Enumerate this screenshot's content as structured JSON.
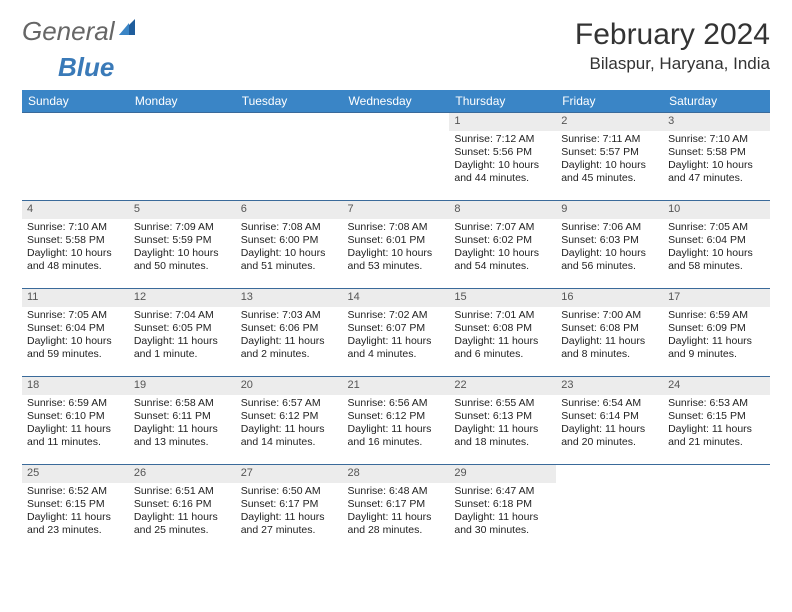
{
  "logo": {
    "text1": "General",
    "text2": "Blue"
  },
  "title": "February 2024",
  "location": "Bilaspur, Haryana, India",
  "colors": {
    "header_bg": "#3a85c6",
    "header_text": "#ffffff",
    "daynum_bg": "#ececec",
    "row_border": "#3a6a9a",
    "logo_accent": "#3a7ab8"
  },
  "weekdays": [
    "Sunday",
    "Monday",
    "Tuesday",
    "Wednesday",
    "Thursday",
    "Friday",
    "Saturday"
  ],
  "weeks": [
    [
      null,
      null,
      null,
      null,
      {
        "n": "1",
        "sr": "Sunrise: 7:12 AM",
        "ss": "Sunset: 5:56 PM",
        "d1": "Daylight: 10 hours",
        "d2": "and 44 minutes."
      },
      {
        "n": "2",
        "sr": "Sunrise: 7:11 AM",
        "ss": "Sunset: 5:57 PM",
        "d1": "Daylight: 10 hours",
        "d2": "and 45 minutes."
      },
      {
        "n": "3",
        "sr": "Sunrise: 7:10 AM",
        "ss": "Sunset: 5:58 PM",
        "d1": "Daylight: 10 hours",
        "d2": "and 47 minutes."
      }
    ],
    [
      {
        "n": "4",
        "sr": "Sunrise: 7:10 AM",
        "ss": "Sunset: 5:58 PM",
        "d1": "Daylight: 10 hours",
        "d2": "and 48 minutes."
      },
      {
        "n": "5",
        "sr": "Sunrise: 7:09 AM",
        "ss": "Sunset: 5:59 PM",
        "d1": "Daylight: 10 hours",
        "d2": "and 50 minutes."
      },
      {
        "n": "6",
        "sr": "Sunrise: 7:08 AM",
        "ss": "Sunset: 6:00 PM",
        "d1": "Daylight: 10 hours",
        "d2": "and 51 minutes."
      },
      {
        "n": "7",
        "sr": "Sunrise: 7:08 AM",
        "ss": "Sunset: 6:01 PM",
        "d1": "Daylight: 10 hours",
        "d2": "and 53 minutes."
      },
      {
        "n": "8",
        "sr": "Sunrise: 7:07 AM",
        "ss": "Sunset: 6:02 PM",
        "d1": "Daylight: 10 hours",
        "d2": "and 54 minutes."
      },
      {
        "n": "9",
        "sr": "Sunrise: 7:06 AM",
        "ss": "Sunset: 6:03 PM",
        "d1": "Daylight: 10 hours",
        "d2": "and 56 minutes."
      },
      {
        "n": "10",
        "sr": "Sunrise: 7:05 AM",
        "ss": "Sunset: 6:04 PM",
        "d1": "Daylight: 10 hours",
        "d2": "and 58 minutes."
      }
    ],
    [
      {
        "n": "11",
        "sr": "Sunrise: 7:05 AM",
        "ss": "Sunset: 6:04 PM",
        "d1": "Daylight: 10 hours",
        "d2": "and 59 minutes."
      },
      {
        "n": "12",
        "sr": "Sunrise: 7:04 AM",
        "ss": "Sunset: 6:05 PM",
        "d1": "Daylight: 11 hours",
        "d2": "and 1 minute."
      },
      {
        "n": "13",
        "sr": "Sunrise: 7:03 AM",
        "ss": "Sunset: 6:06 PM",
        "d1": "Daylight: 11 hours",
        "d2": "and 2 minutes."
      },
      {
        "n": "14",
        "sr": "Sunrise: 7:02 AM",
        "ss": "Sunset: 6:07 PM",
        "d1": "Daylight: 11 hours",
        "d2": "and 4 minutes."
      },
      {
        "n": "15",
        "sr": "Sunrise: 7:01 AM",
        "ss": "Sunset: 6:08 PM",
        "d1": "Daylight: 11 hours",
        "d2": "and 6 minutes."
      },
      {
        "n": "16",
        "sr": "Sunrise: 7:00 AM",
        "ss": "Sunset: 6:08 PM",
        "d1": "Daylight: 11 hours",
        "d2": "and 8 minutes."
      },
      {
        "n": "17",
        "sr": "Sunrise: 6:59 AM",
        "ss": "Sunset: 6:09 PM",
        "d1": "Daylight: 11 hours",
        "d2": "and 9 minutes."
      }
    ],
    [
      {
        "n": "18",
        "sr": "Sunrise: 6:59 AM",
        "ss": "Sunset: 6:10 PM",
        "d1": "Daylight: 11 hours",
        "d2": "and 11 minutes."
      },
      {
        "n": "19",
        "sr": "Sunrise: 6:58 AM",
        "ss": "Sunset: 6:11 PM",
        "d1": "Daylight: 11 hours",
        "d2": "and 13 minutes."
      },
      {
        "n": "20",
        "sr": "Sunrise: 6:57 AM",
        "ss": "Sunset: 6:12 PM",
        "d1": "Daylight: 11 hours",
        "d2": "and 14 minutes."
      },
      {
        "n": "21",
        "sr": "Sunrise: 6:56 AM",
        "ss": "Sunset: 6:12 PM",
        "d1": "Daylight: 11 hours",
        "d2": "and 16 minutes."
      },
      {
        "n": "22",
        "sr": "Sunrise: 6:55 AM",
        "ss": "Sunset: 6:13 PM",
        "d1": "Daylight: 11 hours",
        "d2": "and 18 minutes."
      },
      {
        "n": "23",
        "sr": "Sunrise: 6:54 AM",
        "ss": "Sunset: 6:14 PM",
        "d1": "Daylight: 11 hours",
        "d2": "and 20 minutes."
      },
      {
        "n": "24",
        "sr": "Sunrise: 6:53 AM",
        "ss": "Sunset: 6:15 PM",
        "d1": "Daylight: 11 hours",
        "d2": "and 21 minutes."
      }
    ],
    [
      {
        "n": "25",
        "sr": "Sunrise: 6:52 AM",
        "ss": "Sunset: 6:15 PM",
        "d1": "Daylight: 11 hours",
        "d2": "and 23 minutes."
      },
      {
        "n": "26",
        "sr": "Sunrise: 6:51 AM",
        "ss": "Sunset: 6:16 PM",
        "d1": "Daylight: 11 hours",
        "d2": "and 25 minutes."
      },
      {
        "n": "27",
        "sr": "Sunrise: 6:50 AM",
        "ss": "Sunset: 6:17 PM",
        "d1": "Daylight: 11 hours",
        "d2": "and 27 minutes."
      },
      {
        "n": "28",
        "sr": "Sunrise: 6:48 AM",
        "ss": "Sunset: 6:17 PM",
        "d1": "Daylight: 11 hours",
        "d2": "and 28 minutes."
      },
      {
        "n": "29",
        "sr": "Sunrise: 6:47 AM",
        "ss": "Sunset: 6:18 PM",
        "d1": "Daylight: 11 hours",
        "d2": "and 30 minutes."
      },
      null,
      null
    ]
  ]
}
